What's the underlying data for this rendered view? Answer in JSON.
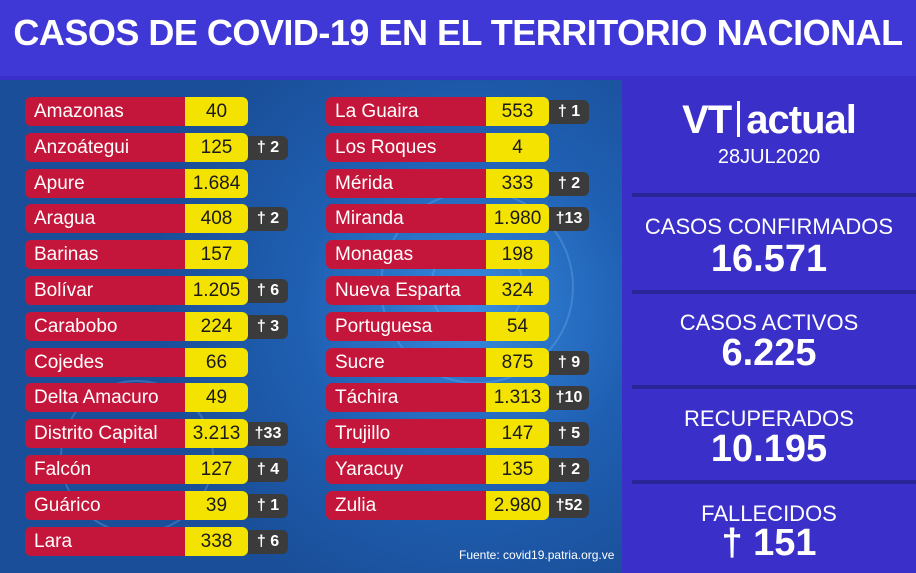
{
  "header": {
    "title": "CASOS DE COVID-19 EN EL TERRITORIO NACIONAL"
  },
  "states_left": [
    {
      "name": "Amazonas",
      "cases": "40",
      "deaths": ""
    },
    {
      "name": "Anzoátegui",
      "cases": "125",
      "deaths": "† 2"
    },
    {
      "name": "Apure",
      "cases": "1.684",
      "deaths": ""
    },
    {
      "name": "Aragua",
      "cases": "408",
      "deaths": "† 2"
    },
    {
      "name": "Barinas",
      "cases": "157",
      "deaths": ""
    },
    {
      "name": "Bolívar",
      "cases": "1.205",
      "deaths": "† 6"
    },
    {
      "name": "Carabobo",
      "cases": "224",
      "deaths": "† 3"
    },
    {
      "name": "Cojedes",
      "cases": "66",
      "deaths": ""
    },
    {
      "name": "Delta Amacuro",
      "cases": "49",
      "deaths": ""
    },
    {
      "name": "Distrito Capital",
      "cases": "3.213",
      "deaths": "†33"
    },
    {
      "name": "Falcón",
      "cases": "127",
      "deaths": "† 4"
    },
    {
      "name": "Guárico",
      "cases": "39",
      "deaths": "† 1"
    },
    {
      "name": "Lara",
      "cases": "338",
      "deaths": "† 6"
    }
  ],
  "states_right": [
    {
      "name": "La Guaira",
      "cases": "553",
      "deaths": "† 1"
    },
    {
      "name": "Los Roques",
      "cases": "4",
      "deaths": ""
    },
    {
      "name": "Mérida",
      "cases": "333",
      "deaths": "† 2"
    },
    {
      "name": "Miranda",
      "cases": "1.980",
      "deaths": "†13"
    },
    {
      "name": "Monagas",
      "cases": "198",
      "deaths": ""
    },
    {
      "name": "Nueva Esparta",
      "cases": "324",
      "deaths": ""
    },
    {
      "name": "Portuguesa",
      "cases": "54",
      "deaths": ""
    },
    {
      "name": "Sucre",
      "cases": "875",
      "deaths": "† 9"
    },
    {
      "name": "Táchira",
      "cases": "1.313",
      "deaths": "†10"
    },
    {
      "name": "Trujillo",
      "cases": "147",
      "deaths": "† 5"
    },
    {
      "name": "Yaracuy",
      "cases": "135",
      "deaths": "† 2"
    },
    {
      "name": "Zulia",
      "cases": "2.980",
      "deaths": "†52"
    }
  ],
  "source": "Fuente: covid19.patria.org.ve",
  "brand": {
    "left": "VT",
    "right": "actual"
  },
  "date": "28JUL2020",
  "stats": {
    "confirmed_label": "CASOS CONFIRMADOS",
    "confirmed_value": "16.571",
    "active_label": "CASOS ACTIVOS",
    "active_value": "6.225",
    "recovered_label": "RECUPERADOS",
    "recovered_value": "10.195",
    "deceased_label": "FALLECIDOS",
    "deceased_value": "† 151"
  },
  "colors": {
    "name_bg": "#c4163a",
    "value_bg": "#f4e300",
    "deaths_bg": "#3b3b3b",
    "panel_bg": "#3a2fc8"
  }
}
